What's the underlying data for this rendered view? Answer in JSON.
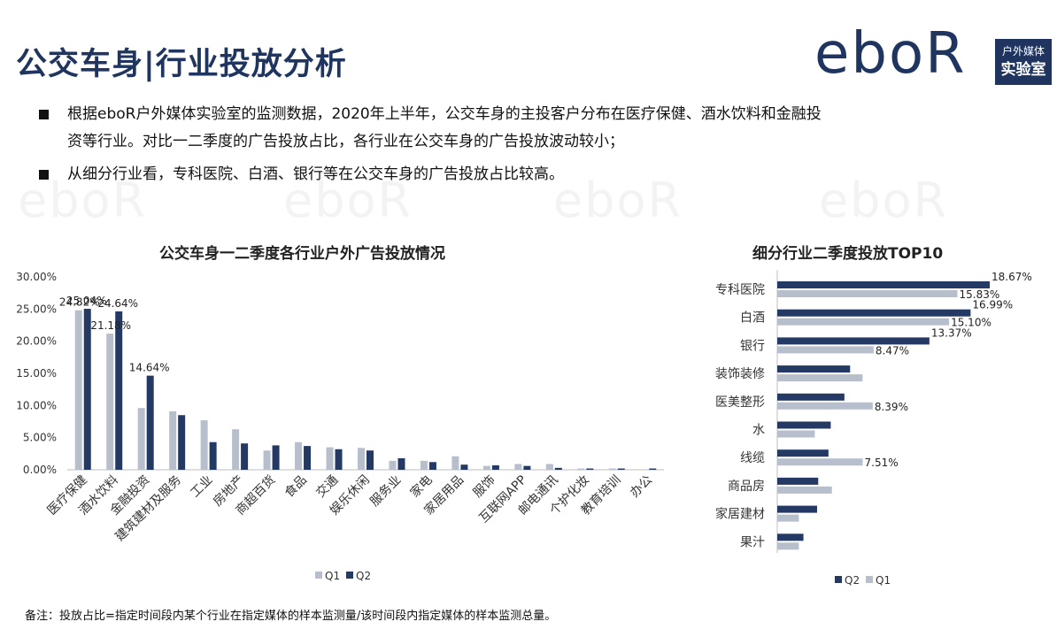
{
  "title": "公交车身|行业投放分析",
  "logo": {
    "text": "eboR",
    "box_line1": "户外媒体",
    "box_line2": "实验室"
  },
  "bullets": [
    {
      "line1": "根据eboR户外媒体实验室的监测数据，2020年上半年，公交车身的主投客户分布在医疗保健、酒水饮料和金融投",
      "line2": "资等行业。对比一二季度的广告投放占比，各行业在公交车身的广告投放波动较小；"
    },
    {
      "line1": "从细分行业看，专科医院、白酒、银行等在公交车身的广告投放占比较高。"
    }
  ],
  "note": "备注：投放占比=指定时间段内某个行业在指定媒体的样本监测量/该时间段内指定媒体的样本监测总量。",
  "colors": {
    "q1": "#b7bfcc",
    "q2": "#243a64",
    "title": "#1f3560",
    "axis": "#bfbfbf"
  },
  "chart_data": [
    {
      "type": "bar",
      "title": "公交车身一二季度各行业户外广告投放情况",
      "categories": [
        "医疗保健",
        "酒水饮料",
        "金融投资",
        "建筑建材及服务",
        "工业",
        "房地产",
        "商超百货",
        "食品",
        "交通",
        "娱乐休闲",
        "服务业",
        "家电",
        "家居用品",
        "服饰",
        "互联网APP",
        "邮电通讯",
        "个护化妆",
        "教育培训",
        "办公"
      ],
      "series": [
        {
          "name": "Q1",
          "values": [
            24.82,
            21.18,
            9.6,
            9.1,
            7.7,
            6.3,
            3.0,
            4.3,
            3.5,
            3.4,
            1.4,
            1.4,
            2.1,
            0.6,
            0.9,
            0.9,
            0.2,
            0.2,
            0.0
          ]
        },
        {
          "name": "Q2",
          "values": [
            25.04,
            24.64,
            14.64,
            8.5,
            4.3,
            4.1,
            3.8,
            3.7,
            3.2,
            3.0,
            1.8,
            1.2,
            0.8,
            0.7,
            0.6,
            0.3,
            0.2,
            0.2,
            0.2
          ]
        }
      ],
      "data_labels": [
        {
          "series": "Q2",
          "category": "医疗保健",
          "text": "25.04%"
        },
        {
          "series": "Q1",
          "category": "医疗保健",
          "text": "24.82%"
        },
        {
          "series": "Q2",
          "category": "酒水饮料",
          "text": "24.64%"
        },
        {
          "series": "Q1",
          "category": "酒水饮料",
          "text": "21.18%"
        },
        {
          "series": "Q2",
          "category": "金融投资",
          "text": "14.64%"
        }
      ],
      "yticks": [
        "0.00%",
        "5.00%",
        "10.00%",
        "15.00%",
        "20.00%",
        "25.00%",
        "30.00%"
      ],
      "ylim": [
        0,
        30
      ],
      "legend": [
        "Q1",
        "Q2"
      ],
      "legend_position": "bottom"
    },
    {
      "type": "bar",
      "orientation": "horizontal",
      "title": "细分行业二季度投放TOP10",
      "categories": [
        "专科医院",
        "白酒",
        "银行",
        "装饰装修",
        "医美整形",
        "水",
        "线缆",
        "商品房",
        "家居建材",
        "果汁"
      ],
      "series": [
        {
          "name": "Q2",
          "values": [
            18.67,
            16.99,
            13.37,
            6.4,
            5.9,
            4.7,
            4.5,
            3.6,
            3.5,
            2.3
          ]
        },
        {
          "name": "Q1",
          "values": [
            15.83,
            15.1,
            8.47,
            7.5,
            8.39,
            3.3,
            7.51,
            4.8,
            1.9,
            1.9
          ]
        }
      ],
      "data_labels": [
        {
          "series": "Q2",
          "category": "专科医院",
          "text": "18.67%"
        },
        {
          "series": "Q1",
          "category": "专科医院",
          "text": "15.83%"
        },
        {
          "series": "Q2",
          "category": "白酒",
          "text": "16.99%"
        },
        {
          "series": "Q1",
          "category": "白酒",
          "text": "15.10%"
        },
        {
          "series": "Q2",
          "category": "银行",
          "text": "13.37%"
        },
        {
          "series": "Q1",
          "category": "银行",
          "text": "8.47%"
        },
        {
          "series": "Q1",
          "category": "医美整形",
          "text": "8.39%"
        },
        {
          "series": "Q1",
          "category": "线缆",
          "text": "7.51%"
        }
      ],
      "xlim": [
        0,
        18.67
      ],
      "legend": [
        "Q2",
        "Q1"
      ],
      "legend_position": "bottom"
    }
  ]
}
